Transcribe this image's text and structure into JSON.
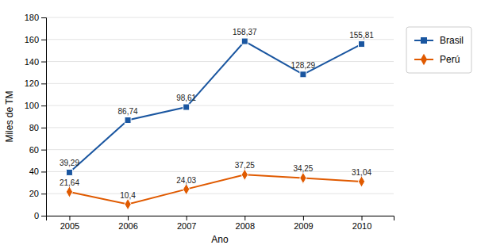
{
  "chart_data": {
    "type": "line",
    "x": [
      2005,
      2006,
      2007,
      2008,
      2009,
      2010
    ],
    "xlim": [
      2004.6,
      2010.55
    ],
    "xticks": [
      2005,
      2006,
      2007,
      2008,
      2009,
      2010
    ],
    "ylim": [
      0,
      180
    ],
    "yticks": [
      0,
      20,
      40,
      60,
      80,
      100,
      120,
      140,
      160,
      180
    ],
    "x_label": "Ano",
    "y_label": "Miles de TM",
    "grid": "y",
    "legend": "right",
    "data_labels": true,
    "series": [
      {
        "name": "Brasil",
        "color": "#1a56a0",
        "marker": "square",
        "values": [
          39.29,
          86.74,
          98.61,
          158.37,
          128.29,
          155.81
        ],
        "value_labels": [
          "39,29",
          "86,74",
          "98,61",
          "158,37",
          "128,29",
          "155,81"
        ]
      },
      {
        "name": "Perú",
        "color": "#e05a00",
        "marker": "diamond",
        "values": [
          21.64,
          10.4,
          24.03,
          37.25,
          34.25,
          31.04
        ],
        "value_labels": [
          "21,64",
          "10,4",
          "24,03",
          "37,25",
          "34,25",
          "31,04"
        ]
      }
    ]
  }
}
